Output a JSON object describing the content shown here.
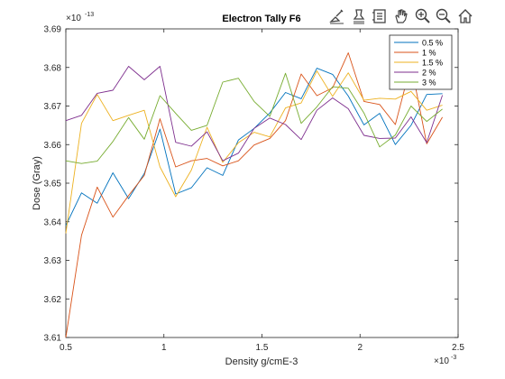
{
  "figure": {
    "toolbar": {
      "icons": [
        "brush-icon",
        "data-cursor-icon",
        "legend-icon",
        "pan-hand-icon",
        "zoom-in-icon",
        "zoom-out-icon",
        "home-icon"
      ]
    }
  },
  "chart_data": {
    "type": "line",
    "title": "Electron Tally F6",
    "xlabel": "Density g/cmE-3",
    "ylabel": "Dose (Gray)",
    "x_exponent": "× 10^-3",
    "y_exponent": "× 10^-13",
    "xlim": [
      0.5,
      2.5
    ],
    "ylim": [
      3.61,
      3.69
    ],
    "xticks": [
      "0.5",
      "1",
      "1.5",
      "2",
      "2.5"
    ],
    "yticks": [
      "3.61",
      "3.62",
      "3.63",
      "3.64",
      "3.65",
      "3.66",
      "3.67",
      "3.68",
      "3.69"
    ],
    "grid": false,
    "legend_position": "top-right",
    "x": [
      0.5,
      0.58,
      0.66,
      0.74,
      0.82,
      0.9,
      0.98,
      1.06,
      1.14,
      1.22,
      1.3,
      1.38,
      1.46,
      1.54,
      1.62,
      1.7,
      1.78,
      1.86,
      1.94,
      2.02,
      2.1,
      2.18,
      2.26,
      2.34,
      2.42
    ],
    "series": [
      {
        "name": "0.5 %",
        "color": "#0072bd",
        "values": [
          3.639,
          3.6475,
          3.6448,
          3.6527,
          3.646,
          3.6525,
          3.664,
          3.6472,
          3.6488,
          3.654,
          3.652,
          3.6612,
          3.6642,
          3.6682,
          3.6735,
          3.6719,
          3.6798,
          3.6782,
          3.6726,
          3.6651,
          3.6681,
          3.66,
          3.665,
          3.673,
          3.6732
        ]
      },
      {
        "name": "1 %",
        "color": "#d95319",
        "values": [
          3.61,
          3.6365,
          3.649,
          3.6412,
          3.6468,
          3.652,
          3.6667,
          3.6542,
          3.6558,
          3.6564,
          3.6545,
          3.6558,
          3.6599,
          3.6616,
          3.6662,
          3.6783,
          3.6727,
          3.6747,
          3.6838,
          3.6712,
          3.6704,
          3.6652,
          3.6808,
          3.6602,
          3.6671
        ]
      },
      {
        "name": "1.5 %",
        "color": "#edb120",
        "values": [
          3.637,
          3.6655,
          3.673,
          3.6662,
          3.6676,
          3.6689,
          3.6542,
          3.6465,
          3.6534,
          3.6645,
          3.6554,
          3.6605,
          3.6632,
          3.662,
          3.6695,
          3.6708,
          3.6791,
          3.6725,
          3.6786,
          3.6715,
          3.672,
          3.6718,
          3.6738,
          3.6689,
          3.6702
        ]
      },
      {
        "name": "2 %",
        "color": "#7e2f8e",
        "values": [
          3.6662,
          3.6676,
          3.6733,
          3.6741,
          3.6803,
          3.6768,
          3.6803,
          3.6606,
          3.6596,
          3.6633,
          3.6558,
          3.6578,
          3.6642,
          3.6669,
          3.6652,
          3.6613,
          3.6689,
          3.6721,
          3.6693,
          3.6624,
          3.6616,
          3.6617,
          3.6672,
          3.6605,
          3.6728
        ]
      },
      {
        "name": "3 %",
        "color": "#77ac30",
        "values": [
          3.6558,
          3.6551,
          3.6557,
          3.6608,
          3.667,
          3.6614,
          3.6727,
          3.6681,
          3.6637,
          3.665,
          3.6762,
          3.6772,
          3.6712,
          3.6673,
          3.6785,
          3.6655,
          3.6698,
          3.675,
          3.6746,
          3.6682,
          3.6594,
          3.6625,
          3.67,
          3.666,
          3.6692
        ]
      }
    ]
  }
}
